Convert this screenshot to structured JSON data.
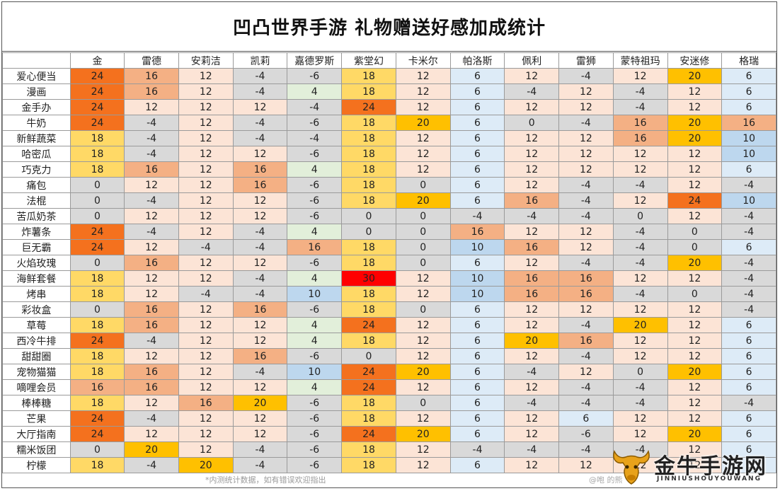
{
  "title": "凹凸世界手游  礼物赠送好感加成统计",
  "columns": [
    "金",
    "雷德",
    "安莉洁",
    "凯莉",
    "嘉德罗斯",
    "紫堂幻",
    "卡米尔",
    "帕洛斯",
    "佩利",
    "雷狮",
    "蒙特祖玛",
    "安迷修",
    "格瑞"
  ],
  "rows": [
    {
      "label": "爱心便当",
      "values": [
        24,
        16,
        12,
        -4,
        -6,
        18,
        12,
        6,
        12,
        -4,
        12,
        20,
        6
      ]
    },
    {
      "label": "漫画",
      "values": [
        24,
        16,
        12,
        -4,
        4,
        18,
        12,
        6,
        -4,
        12,
        -4,
        12,
        6
      ]
    },
    {
      "label": "金手办",
      "values": [
        24,
        12,
        12,
        12,
        -4,
        24,
        12,
        6,
        12,
        12,
        -4,
        12,
        6
      ]
    },
    {
      "label": "牛奶",
      "values": [
        24,
        -4,
        12,
        -4,
        -6,
        18,
        20,
        6,
        0,
        -4,
        16,
        20,
        16
      ]
    },
    {
      "label": "新鲜蔬菜",
      "values": [
        18,
        -4,
        12,
        -4,
        -4,
        18,
        12,
        6,
        12,
        12,
        16,
        20,
        10
      ]
    },
    {
      "label": "哈密瓜",
      "values": [
        18,
        -4,
        12,
        12,
        -6,
        18,
        12,
        6,
        12,
        12,
        12,
        12,
        10
      ]
    },
    {
      "label": "巧克力",
      "values": [
        18,
        16,
        12,
        16,
        4,
        18,
        12,
        6,
        12,
        12,
        12,
        12,
        6
      ]
    },
    {
      "label": "痛包",
      "values": [
        0,
        12,
        12,
        16,
        -6,
        18,
        0,
        6,
        12,
        -4,
        -4,
        12,
        -4
      ]
    },
    {
      "label": "法棍",
      "values": [
        0,
        -4,
        12,
        12,
        -6,
        18,
        20,
        6,
        16,
        -4,
        12,
        24,
        10
      ]
    },
    {
      "label": "苦瓜奶茶",
      "values": [
        0,
        12,
        12,
        12,
        -6,
        0,
        0,
        -4,
        -4,
        -4,
        0,
        12,
        -4
      ]
    },
    {
      "label": "炸薯条",
      "values": [
        24,
        -4,
        12,
        -4,
        4,
        0,
        0,
        16,
        12,
        12,
        -4,
        0,
        -4
      ]
    },
    {
      "label": "巨无霸",
      "values": [
        24,
        12,
        -4,
        -4,
        16,
        18,
        0,
        10,
        16,
        12,
        -4,
        0,
        6
      ]
    },
    {
      "label": "火焰玫瑰",
      "values": [
        0,
        16,
        12,
        12,
        -6,
        18,
        0,
        6,
        12,
        -4,
        -4,
        20,
        -4
      ]
    },
    {
      "label": "海鲜套餐",
      "values": [
        18,
        12,
        12,
        -4,
        4,
        30,
        12,
        10,
        16,
        16,
        12,
        12,
        -4
      ]
    },
    {
      "label": "烤串",
      "values": [
        18,
        12,
        -4,
        -4,
        10,
        18,
        12,
        10,
        16,
        16,
        -4,
        0,
        -4
      ]
    },
    {
      "label": "彩妆盒",
      "values": [
        0,
        16,
        12,
        16,
        -6,
        18,
        0,
        6,
        12,
        12,
        12,
        12,
        -4
      ]
    },
    {
      "label": "草莓",
      "values": [
        18,
        16,
        12,
        12,
        4,
        24,
        12,
        6,
        12,
        -4,
        20,
        12,
        6
      ]
    },
    {
      "label": "西冷牛排",
      "values": [
        24,
        -4,
        12,
        12,
        4,
        18,
        12,
        6,
        20,
        16,
        12,
        12,
        6
      ]
    },
    {
      "label": "甜甜圈",
      "values": [
        18,
        12,
        12,
        16,
        -6,
        0,
        12,
        6,
        12,
        -4,
        12,
        12,
        6
      ]
    },
    {
      "label": "宠物猫猫",
      "values": [
        18,
        16,
        12,
        -4,
        10,
        24,
        20,
        6,
        -4,
        12,
        0,
        20,
        6
      ]
    },
    {
      "label": "嘀哩会员",
      "values": [
        16,
        16,
        12,
        12,
        4,
        24,
        12,
        6,
        12,
        -4,
        -4,
        12,
        6
      ]
    },
    {
      "label": "棒棒糖",
      "values": [
        18,
        12,
        16,
        20,
        -6,
        18,
        0,
        6,
        -4,
        -4,
        -4,
        12,
        -4
      ]
    },
    {
      "label": "芒果",
      "values": [
        24,
        -4,
        12,
        12,
        -6,
        18,
        12,
        6,
        12,
        6,
        12,
        12,
        6
      ]
    },
    {
      "label": "大厅指南",
      "values": [
        24,
        12,
        12,
        12,
        -6,
        24,
        20,
        6,
        12,
        -6,
        12,
        20,
        6
      ]
    },
    {
      "label": "糯米饭团",
      "values": [
        0,
        20,
        12,
        -4,
        -6,
        18,
        12,
        -4,
        -4,
        -4,
        -4,
        12,
        6
      ]
    },
    {
      "label": "柠檬",
      "values": [
        18,
        -4,
        20,
        -4,
        -6,
        18,
        12,
        6,
        12,
        12,
        12,
        12,
        6
      ]
    }
  ],
  "colors": {
    "v30": "#ff0000",
    "v24": "#f4711e",
    "v20": "#ffc000",
    "v18": "#ffd966",
    "v16": "#f4b084",
    "v12": "#fce4d6",
    "v10": "#bdd7ee",
    "v6": "#ddebf7",
    "v4": "#e2efda",
    "v0": "#d9d9d9",
    "neg": "#d9d9d9"
  },
  "footer_note": "*内测统计数据，如有错误欢迎指出",
  "watermark_small": "@咆  的熊",
  "logo": {
    "name": "金牛手游网",
    "subtitle": "JINNIUSHOUYOUWANG",
    "icon": "bull-head-icon"
  }
}
